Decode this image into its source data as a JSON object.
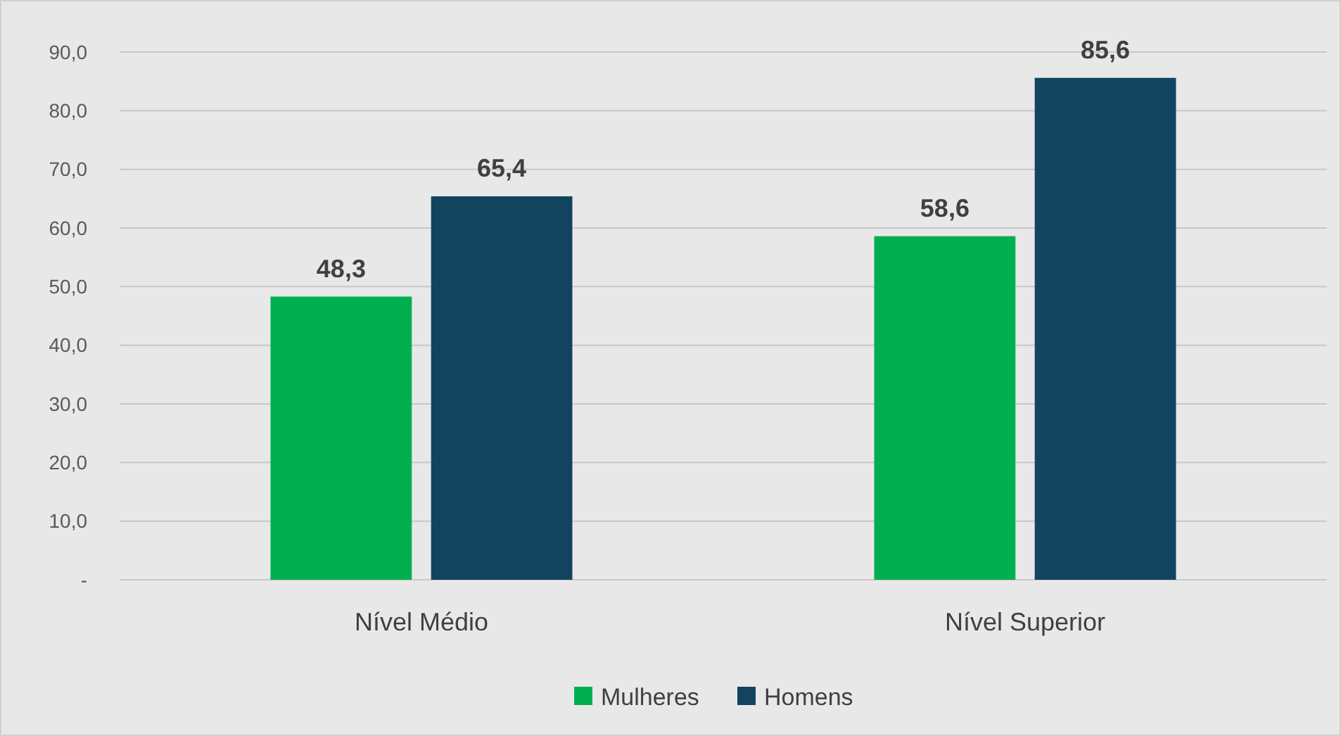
{
  "chart_data": {
    "type": "bar",
    "categories": [
      "Nível Médio",
      "Nível Superior"
    ],
    "series": [
      {
        "name": "Mulheres",
        "color": "#00b050",
        "values": [
          48.3,
          58.6
        ],
        "value_labels": [
          "48,3",
          "58,6"
        ]
      },
      {
        "name": "Homens",
        "color": "#124460",
        "values": [
          65.4,
          85.6
        ],
        "value_labels": [
          "65,4",
          "85,6"
        ]
      }
    ],
    "ylim": [
      0,
      90
    ],
    "yticks": [
      {
        "value": 0,
        "label": "-"
      },
      {
        "value": 10,
        "label": "10,0"
      },
      {
        "value": 20,
        "label": "20,0"
      },
      {
        "value": 30,
        "label": "30,0"
      },
      {
        "value": 40,
        "label": "40,0"
      },
      {
        "value": 50,
        "label": "50,0"
      },
      {
        "value": 60,
        "label": "60,0"
      },
      {
        "value": 70,
        "label": "70,0"
      },
      {
        "value": 80,
        "label": "80,0"
      },
      {
        "value": 90,
        "label": "90,0"
      }
    ],
    "grid": "y",
    "legend": "bottom"
  }
}
